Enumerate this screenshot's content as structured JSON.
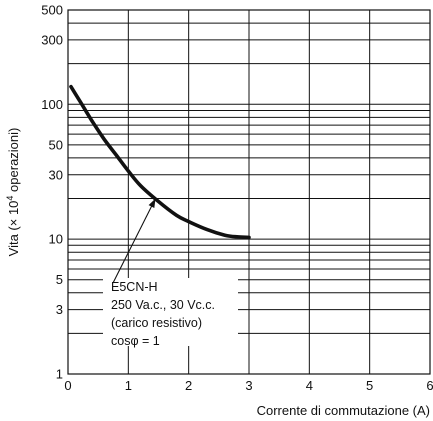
{
  "chart_data": {
    "type": "line",
    "xlabel": "Corrente di commutazione (A)",
    "ylabel": "Vita (× 10",
    "ylabel_exponent": "4",
    "ylabel_suffix": " operazioni)",
    "xlim": [
      0,
      6
    ],
    "ylim": [
      1,
      500
    ],
    "y_scale": "log",
    "grid": true,
    "x_ticks": [
      "0",
      "1",
      "2",
      "3",
      "4",
      "5",
      "6"
    ],
    "y_ticks": [
      {
        "value": 1,
        "label": "1"
      },
      {
        "value": 3,
        "label": "3"
      },
      {
        "value": 5,
        "label": "5"
      },
      {
        "value": 10,
        "label": "10"
      },
      {
        "value": 30,
        "label": "30"
      },
      {
        "value": 50,
        "label": "50"
      },
      {
        "value": 100,
        "label": "100"
      },
      {
        "value": 300,
        "label": "300"
      },
      {
        "value": 500,
        "label": "500"
      }
    ],
    "series": [
      {
        "color": "#111111",
        "x": [
          0.05,
          0.2,
          0.4,
          0.6,
          0.8,
          1.0,
          1.2,
          1.5,
          1.8,
          2.0,
          2.3,
          2.6,
          2.8,
          3.0
        ],
        "y": [
          135,
          105,
          75,
          55,
          42,
          32,
          25,
          19,
          15,
          13.5,
          11.8,
          10.7,
          10.4,
          10.3
        ]
      }
    ],
    "annotation": {
      "lines": [
        "E5CN-H",
        "250 Va.c., 30 Vc.c.",
        "(carico resistivo)",
        "cosφ = 1"
      ],
      "arrow_to": {
        "x": 1.45,
        "y": 20
      }
    }
  }
}
